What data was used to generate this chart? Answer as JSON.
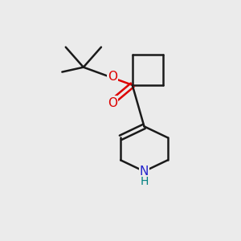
{
  "bg_color": "#ebebeb",
  "bond_color": "#1a1a1a",
  "O_color": "#dd0000",
  "N_color": "#2222cc",
  "H_color": "#008080",
  "line_width": 1.8,
  "font_size": 11,
  "fig_size": [
    3.0,
    3.0
  ],
  "dpi": 100,
  "xlim": [
    0,
    10
  ],
  "ylim": [
    0,
    10
  ]
}
